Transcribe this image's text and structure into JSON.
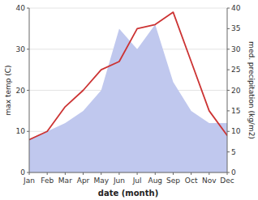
{
  "chart_data": {
    "type": "line",
    "categories": [
      "Jan",
      "Feb",
      "Mar",
      "Apr",
      "May",
      "Jun",
      "Jul",
      "Aug",
      "Sep",
      "Oct",
      "Nov",
      "Dec"
    ],
    "xlabel": "date (month)",
    "ylabel": "max temp (C)",
    "y2label": "med. precipitation (kg/m2)",
    "series": [
      {
        "type": "area",
        "axis": "y2",
        "color": "#c0c8ee",
        "values": [
          8,
          10,
          12,
          15,
          20,
          35,
          30,
          36,
          22,
          15,
          12,
          12
        ]
      },
      {
        "type": "line",
        "color": "#cc3333",
        "values": [
          8,
          10,
          16,
          20,
          25,
          27,
          35,
          36,
          39,
          27,
          15,
          9
        ]
      }
    ],
    "ylim": [
      0,
      40
    ],
    "yticks": [
      0,
      10,
      20,
      30,
      40
    ],
    "y2lim": [
      0,
      40
    ],
    "y2ticks": [
      0,
      5,
      10,
      15,
      20,
      25,
      30,
      35,
      40
    ],
    "grid": true
  }
}
